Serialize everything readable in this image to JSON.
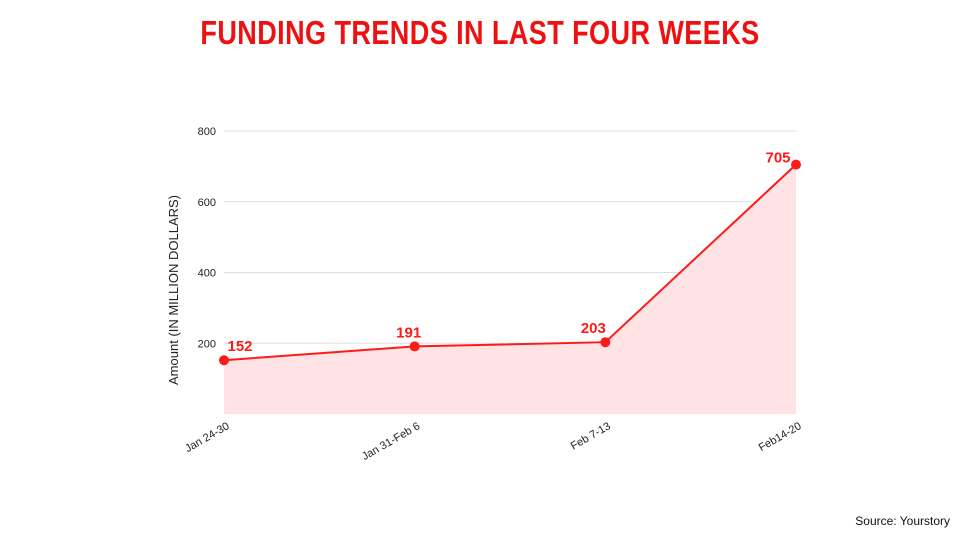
{
  "title": "FUNDING TRENDS IN LAST FOUR WEEKS",
  "source": "Source: Yourstory",
  "colors": {
    "accent": "#ff1a1a",
    "fill": "#ffe3e5",
    "grid": "#dddddd",
    "title": "#ee1111"
  },
  "chart_data": {
    "type": "area",
    "categories": [
      "Jan 24-30",
      "Jan 31-Feb 6",
      "Feb 7-13",
      "Feb14-20"
    ],
    "values": [
      152,
      191,
      203,
      705
    ],
    "data_labels": [
      "152",
      "191",
      "203",
      "705"
    ],
    "ylabel": "Amount (IN MILLION DOLLARS)",
    "xlabel": "",
    "ylim": [
      0,
      800
    ],
    "yticks": [
      "200",
      "400",
      "600",
      "800"
    ],
    "ytick_values": [
      200,
      400,
      600,
      800
    ],
    "grid": true,
    "legend": "none"
  }
}
